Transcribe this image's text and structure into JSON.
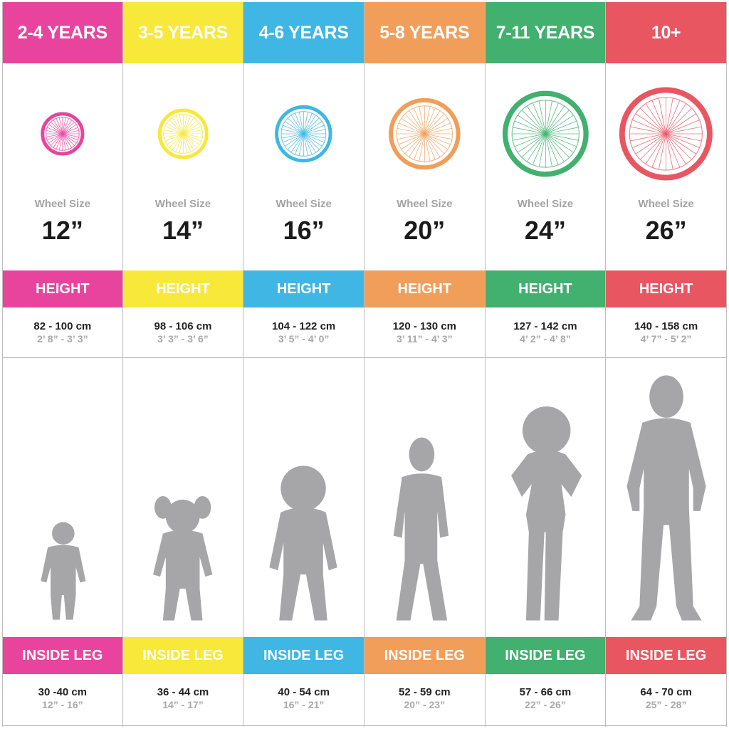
{
  "labels": {
    "wheel_size": "Wheel Size",
    "height": "HEIGHT",
    "inside_leg": "INSIDE LEG"
  },
  "chart_data": {
    "type": "table",
    "columns": [
      {
        "age": "2-4 YEARS",
        "color": "#e8449e",
        "wheel": "12”",
        "wheel_in": 12,
        "height_cm": "82 - 100 cm",
        "height_ft": "2’ 8” - 3’ 3”",
        "leg_cm": "30 -40 cm",
        "leg_in": "12” - 16”",
        "figure": "toddler-icon"
      },
      {
        "age": "3-5 YEARS",
        "color": "#f7e83a",
        "wheel": "14”",
        "wheel_in": 14,
        "height_cm": "98 - 106 cm",
        "height_ft": "3’ 3” - 3’ 6”",
        "leg_cm": "36 - 44 cm",
        "leg_in": "14” - 17”",
        "figure": "girl-pigtails-icon"
      },
      {
        "age": "4-6 YEARS",
        "color": "#3fb6e3",
        "wheel": "16”",
        "wheel_in": 16,
        "height_cm": "104 - 122 cm",
        "height_ft": "3’ 5” - 4’ 0”",
        "leg_cm": "40 - 54 cm",
        "leg_in": "16” - 21”",
        "figure": "child-curly-hair-icon"
      },
      {
        "age": "5-8 YEARS",
        "color": "#f19e5a",
        "wheel": "20”",
        "wheel_in": 20,
        "height_cm": "120 - 130 cm",
        "height_ft": "3’ 11” - 4’ 3”",
        "leg_cm": "52 - 59 cm",
        "leg_in": "20” - 23”",
        "figure": "boy-icon"
      },
      {
        "age": "7-11 YEARS",
        "color": "#42b06e",
        "wheel": "24”",
        "wheel_in": 24,
        "height_cm": "127 - 142 cm",
        "height_ft": "4’ 2” - 4’ 8”",
        "leg_cm": "57 - 66 cm",
        "leg_in": "22” - 26”",
        "figure": "girl-hands-on-hips-icon"
      },
      {
        "age": "10+",
        "color": "#e85662",
        "wheel": "26”",
        "wheel_in": 26,
        "height_cm": "140 - 158 cm",
        "height_ft": "4’ 7” - 5’ 2”",
        "leg_cm": "64 - 70 cm",
        "leg_in": "25” - 28”",
        "figure": "adult-man-icon"
      }
    ]
  }
}
